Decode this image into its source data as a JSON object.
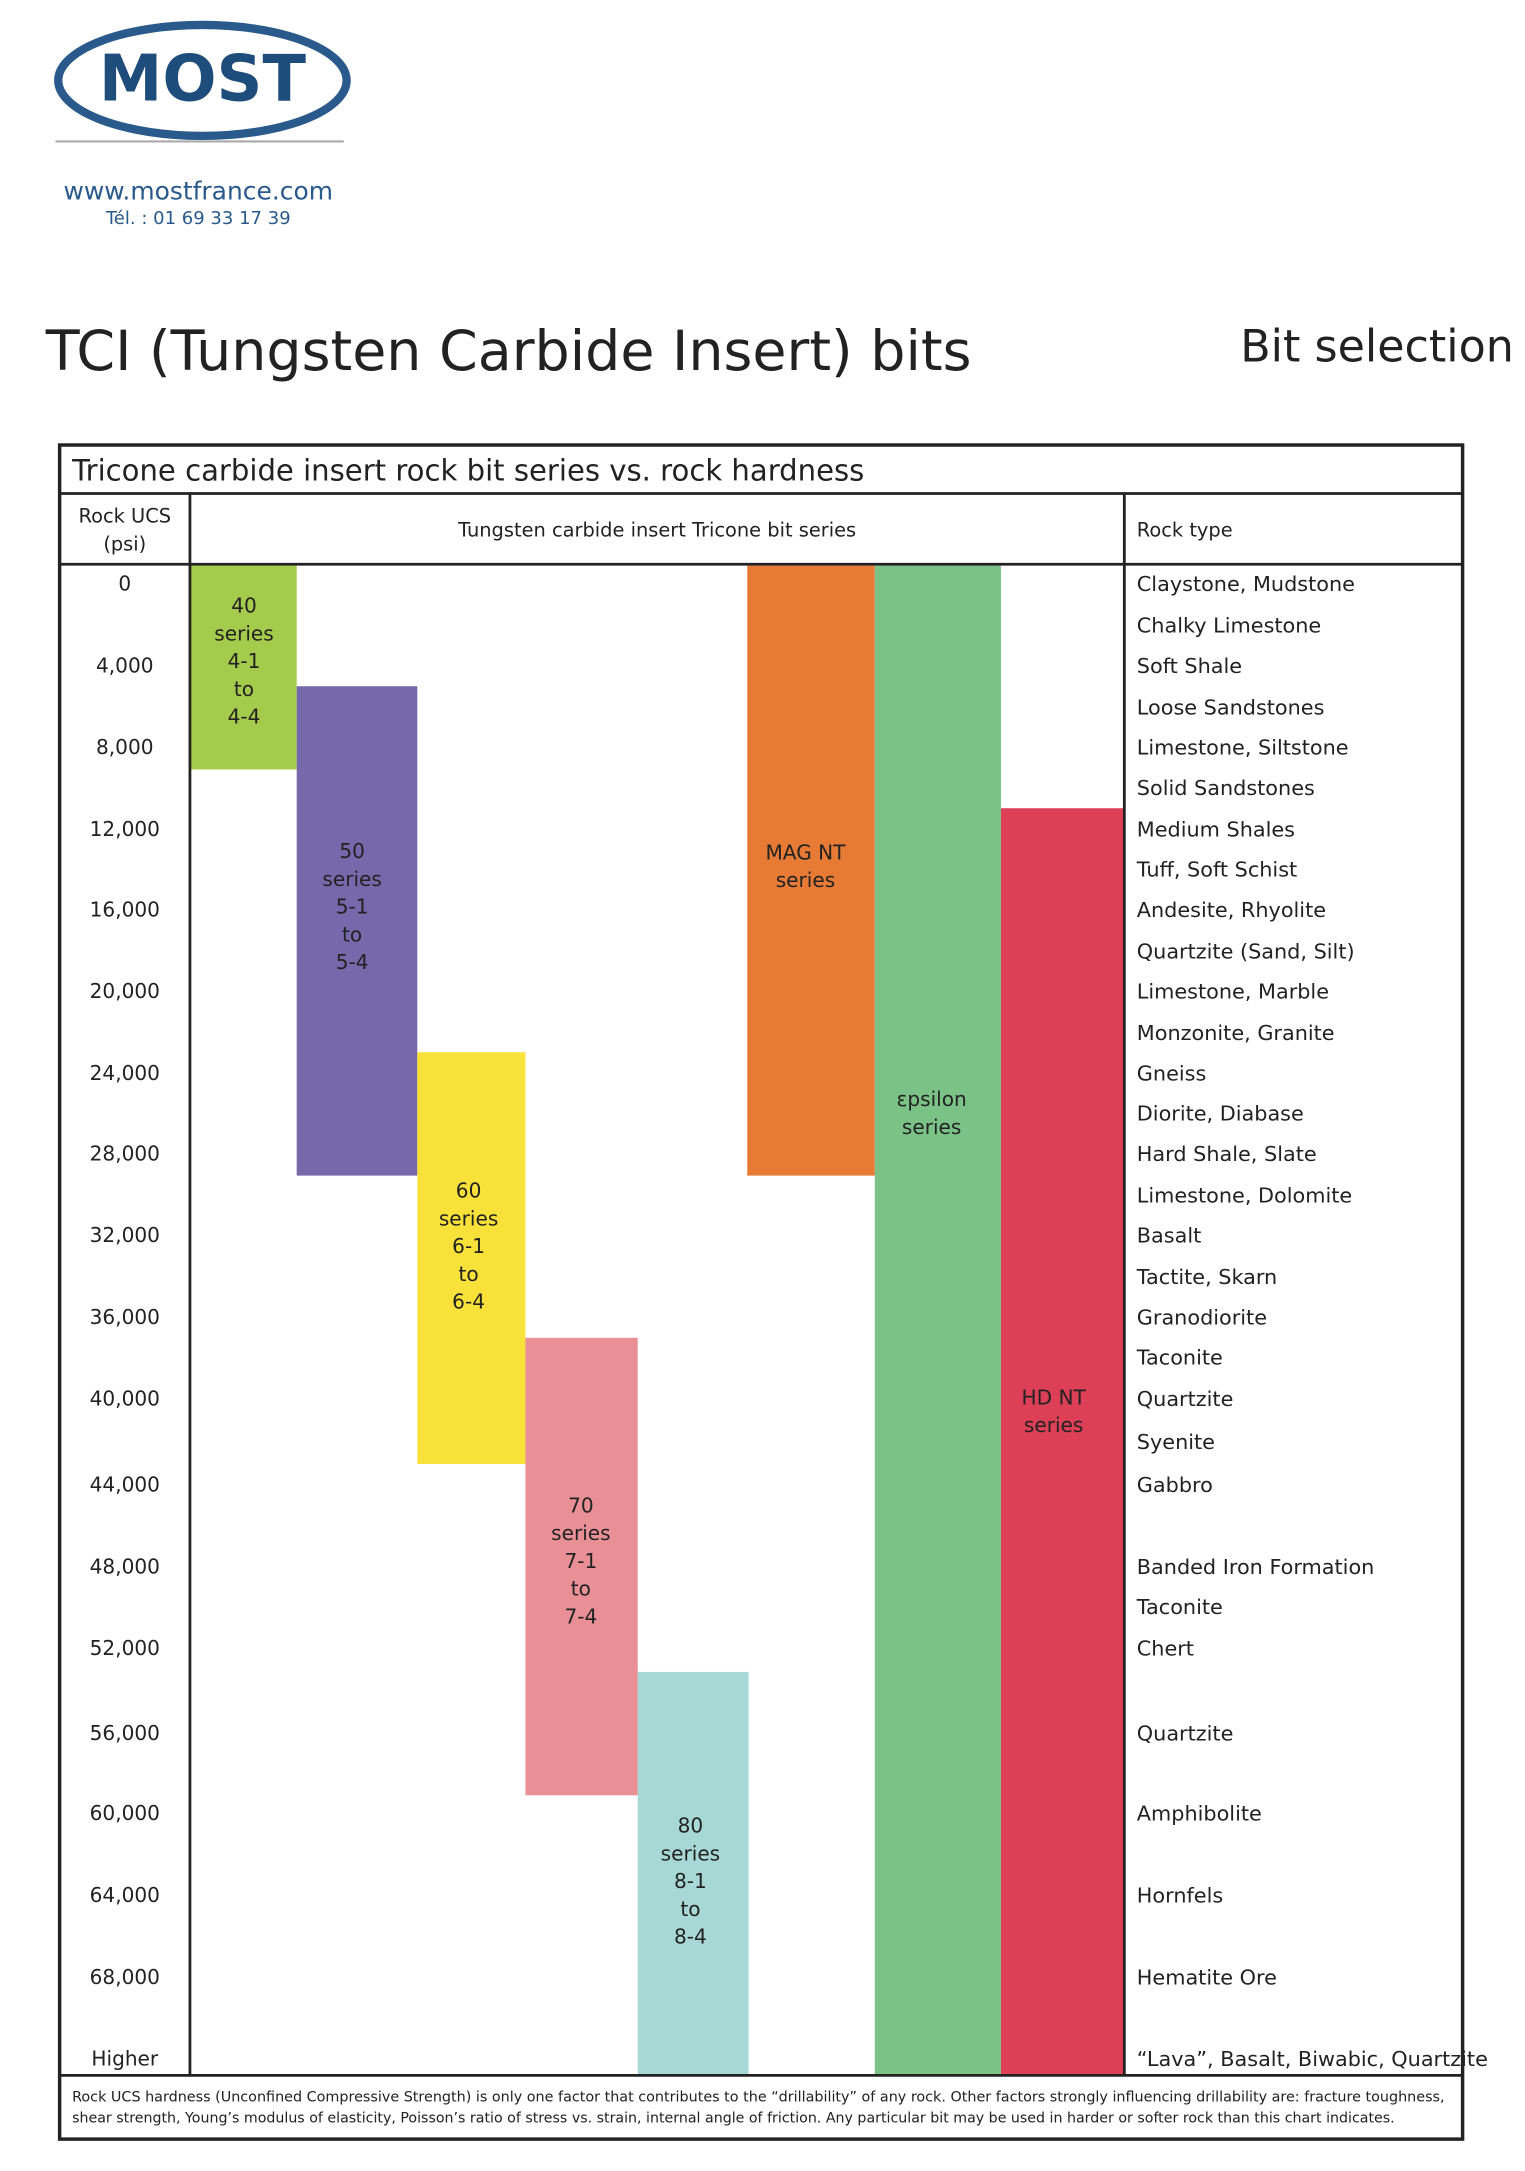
{
  "header": {
    "logo": "MOST",
    "website": "www.mostfrance.com",
    "phone": "Tél. : 01 69 33 17 39"
  },
  "title": "TCI (Tungsten Carbide Insert) bits",
  "subtitle": "Bit selection",
  "table": {
    "title": "Tricone carbide insert rock bit series vs. rock hardness",
    "headers": {
      "ucs": [
        "Rock UCS",
        "(psi)"
      ],
      "series": "Tungsten carbide insert Tricone bit series",
      "rock": "Rock type"
    },
    "ucs": [
      "0",
      "4,000",
      "8,000",
      "12,000",
      "16,000",
      "20,000",
      "24,000",
      "28,000",
      "32,000",
      "36,000",
      "40,000",
      "44,000",
      "48,000",
      "52,000",
      "56,000",
      "60,000",
      "64,000",
      "68,000",
      "Higher"
    ],
    "rock_types": [
      "Claystone, Mudstone",
      "Chalky Limestone",
      "Soft Shale",
      "Loose Sandstones",
      "Limestone, Siltstone",
      "Solid Sandstones",
      "Medium Shales",
      "Tuff, Soft Schist",
      "Andesite, Rhyolite",
      "Quartzite (Sand, Silt)",
      "Limestone, Marble",
      "Monzonite, Granite",
      "Gneiss",
      "Diorite, Diabase",
      "Hard Shale, Slate",
      "Limestone, Dolomite",
      "Basalt",
      "Tactite, Skarn",
      "Granodiorite",
      "Taconite",
      "Quartzite",
      "Syenite",
      "Gabbro",
      "Banded Iron Formation",
      "Taconite",
      "Chert",
      "Quartzite",
      "Amphibolite",
      "Hornfels",
      "Hematite Ore",
      "“Lava”, Basalt, Biwabic, Quartzite"
    ],
    "series": [
      {
        "lines": [
          "40",
          "series",
          "4-1",
          "to",
          "4-4"
        ],
        "color": "#a4cb4b"
      },
      {
        "lines": [
          "50",
          "series",
          "5-1",
          "to",
          "5-4"
        ],
        "color": "#7767ab"
      },
      {
        "lines": [
          "60",
          "series",
          "6-1",
          "to",
          "6-4"
        ],
        "color": "#f8e23a"
      },
      {
        "lines": [
          "70",
          "series",
          "7-1",
          "to",
          "7-4"
        ],
        "color": "#e99096"
      },
      {
        "lines": [
          "80",
          "series",
          "8-1",
          "to",
          "8-4"
        ],
        "color": "#a7d8d6"
      },
      {
        "lines": [
          "MAG NT",
          "series"
        ],
        "color": "#e77b35"
      },
      {
        "lines": [
          "εpsilon",
          "series"
        ],
        "color": "#7bc287"
      },
      {
        "lines": [
          "HD NT",
          "series"
        ],
        "color": "#dc3f56"
      }
    ],
    "footnote": [
      "Rock UCS hardness (Unconfined Compressive Strength) is only one factor that contributes to the “drillability” of any rock.  Other factors strongly influencing drillability are:  fracture toughness,",
      "shear strength, Young’s modulus of elasticity, Poisson’s ratio of stress vs. strain, internal angle of friction.  Any particular bit may be used in harder or softer rock than this chart indicates."
    ]
  }
}
